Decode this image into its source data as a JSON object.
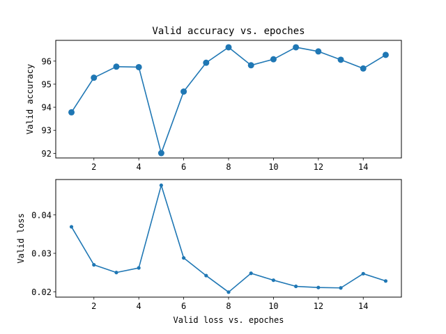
{
  "chart_data": [
    {
      "type": "line",
      "title": "Valid accuracy vs. epoches",
      "xlabel": "",
      "ylabel": "Valid accuracy",
      "xlim": [
        0.3,
        15.7
      ],
      "ylim": [
        91.8,
        96.9
      ],
      "xticks": [
        2,
        4,
        6,
        8,
        10,
        12,
        14
      ],
      "yticks": [
        92,
        93,
        94,
        95,
        96
      ],
      "grid": false,
      "color": "#1f77b4",
      "marker": "large-dot",
      "x": [
        1,
        2,
        3,
        4,
        5,
        6,
        7,
        8,
        9,
        10,
        11,
        12,
        13,
        14,
        15
      ],
      "y": [
        93.78,
        95.28,
        95.76,
        95.74,
        92.01,
        94.68,
        95.93,
        96.6,
        95.82,
        96.08,
        96.6,
        96.42,
        96.06,
        95.68,
        96.27
      ]
    },
    {
      "type": "line",
      "title": "",
      "xlabel": "Valid loss vs. epoches",
      "ylabel": "Valid loss",
      "xlim": [
        0.3,
        15.7
      ],
      "ylim": [
        0.0186,
        0.0492
      ],
      "xticks": [
        2,
        4,
        6,
        8,
        10,
        12,
        14
      ],
      "yticks": [
        0.02,
        0.03,
        0.04
      ],
      "grid": false,
      "color": "#1f77b4",
      "marker": "small-dot",
      "x": [
        1,
        2,
        3,
        4,
        5,
        6,
        7,
        8,
        9,
        10,
        11,
        12,
        13,
        14,
        15
      ],
      "y": [
        0.0369,
        0.027,
        0.025,
        0.0262,
        0.0477,
        0.0288,
        0.0242,
        0.0199,
        0.0248,
        0.023,
        0.0214,
        0.0211,
        0.021,
        0.0247,
        0.0228
      ]
    }
  ]
}
